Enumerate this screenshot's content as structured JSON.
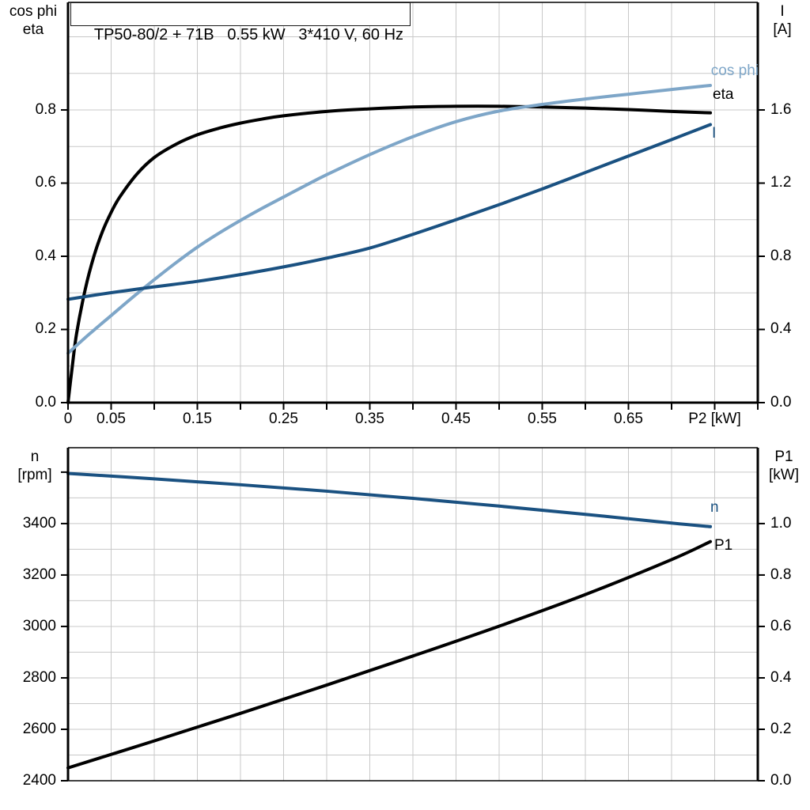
{
  "chart_data": [
    {
      "type": "line",
      "title": "TP50-80/2 + 71B   0.55 kW   3*410 V, 60 Hz",
      "x_axis": {
        "label": "P2 [kW]",
        "min": 0,
        "max": 0.8,
        "tick_step": 0.05,
        "grid_step": 0.05,
        "tick_labels": [
          {
            "v": 0,
            "label": "0"
          },
          {
            "v": 0.05,
            "label": "0.05"
          },
          {
            "v": 0.15,
            "label": "0.15"
          },
          {
            "v": 0.25,
            "label": "0.25"
          },
          {
            "v": 0.35,
            "label": "0.35"
          },
          {
            "v": 0.45,
            "label": "0.45"
          },
          {
            "v": 0.55,
            "label": "0.55"
          },
          {
            "v": 0.65,
            "label": "0.65"
          },
          {
            "v": 0.75,
            "label": "P2 [kW]"
          }
        ]
      },
      "left_axis": {
        "title_lines": [
          "cos phi",
          "eta"
        ],
        "min": 0,
        "max": 1.094,
        "grid": {
          "start": 0.1,
          "end": 1.0,
          "step": 0.1
        },
        "ticks": [
          {
            "v": 0.0,
            "label": "0.0"
          },
          {
            "v": 0.2,
            "label": "0.2"
          },
          {
            "v": 0.4,
            "label": "0.4"
          },
          {
            "v": 0.6,
            "label": "0.6"
          },
          {
            "v": 0.8,
            "label": "0.8"
          }
        ]
      },
      "right_axis": {
        "title_lines": [
          "I",
          "[A]"
        ],
        "min": 0,
        "max": 2.188,
        "ticks": [
          {
            "v": 0.0,
            "label": "0.0"
          },
          {
            "v": 0.4,
            "label": "0.4"
          },
          {
            "v": 0.8,
            "label": "0.8"
          },
          {
            "v": 1.2,
            "label": "1.2"
          },
          {
            "v": 1.6,
            "label": "1.6"
          }
        ]
      },
      "series": [
        {
          "name": "eta",
          "label": "eta",
          "axis": "left",
          "color": "#000000",
          "points": [
            [
              0,
              0
            ],
            [
              0.005,
              0.1
            ],
            [
              0.01,
              0.19
            ],
            [
              0.02,
              0.31
            ],
            [
              0.03,
              0.4
            ],
            [
              0.04,
              0.468
            ],
            [
              0.05,
              0.52
            ],
            [
              0.06,
              0.562
            ],
            [
              0.08,
              0.625
            ],
            [
              0.1,
              0.67
            ],
            [
              0.125,
              0.706
            ],
            [
              0.15,
              0.732
            ],
            [
              0.175,
              0.75
            ],
            [
              0.2,
              0.764
            ],
            [
              0.225,
              0.775
            ],
            [
              0.25,
              0.784
            ],
            [
              0.3,
              0.796
            ],
            [
              0.35,
              0.803
            ],
            [
              0.4,
              0.808
            ],
            [
              0.45,
              0.81
            ],
            [
              0.5,
              0.81
            ],
            [
              0.55,
              0.808
            ],
            [
              0.6,
              0.805
            ],
            [
              0.65,
              0.801
            ],
            [
              0.7,
              0.796
            ],
            [
              0.745,
              0.792
            ]
          ]
        },
        {
          "name": "cos-phi",
          "label": "cos phi",
          "axis": "left",
          "color": "#7ea6c8",
          "points": [
            [
              0,
              0.135
            ],
            [
              0.025,
              0.188
            ],
            [
              0.05,
              0.238
            ],
            [
              0.075,
              0.288
            ],
            [
              0.1,
              0.336
            ],
            [
              0.125,
              0.382
            ],
            [
              0.15,
              0.425
            ],
            [
              0.175,
              0.463
            ],
            [
              0.2,
              0.498
            ],
            [
              0.225,
              0.531
            ],
            [
              0.25,
              0.562
            ],
            [
              0.275,
              0.593
            ],
            [
              0.3,
              0.623
            ],
            [
              0.35,
              0.678
            ],
            [
              0.4,
              0.727
            ],
            [
              0.45,
              0.768
            ],
            [
              0.5,
              0.797
            ],
            [
              0.55,
              0.815
            ],
            [
              0.6,
              0.83
            ],
            [
              0.65,
              0.843
            ],
            [
              0.7,
              0.856
            ],
            [
              0.745,
              0.867
            ]
          ]
        },
        {
          "name": "current",
          "label": "I",
          "axis": "right",
          "color": "#1a5181",
          "points": [
            [
              0,
              0.565
            ],
            [
              0.05,
              0.601
            ],
            [
              0.1,
              0.633
            ],
            [
              0.15,
              0.663
            ],
            [
              0.2,
              0.7
            ],
            [
              0.25,
              0.742
            ],
            [
              0.3,
              0.79
            ],
            [
              0.35,
              0.845
            ],
            [
              0.4,
              0.92
            ],
            [
              0.45,
              1.0
            ],
            [
              0.5,
              1.082
            ],
            [
              0.55,
              1.168
            ],
            [
              0.6,
              1.258
            ],
            [
              0.65,
              1.348
            ],
            [
              0.7,
              1.438
            ],
            [
              0.745,
              1.52
            ]
          ]
        }
      ]
    },
    {
      "type": "line",
      "x_axis": {
        "min": 0,
        "max": 0.8,
        "grid_step": 0.05
      },
      "left_axis": {
        "title_lines": [
          "n",
          "[rpm]"
        ],
        "min": 2400,
        "max": 3695,
        "grid": {
          "start": 2500,
          "end": 3600,
          "step": 100
        },
        "ticks": [
          {
            "v": 2400,
            "label": "2400"
          },
          {
            "v": 2600,
            "label": "2600"
          },
          {
            "v": 2800,
            "label": "2800"
          },
          {
            "v": 3000,
            "label": "3000"
          },
          {
            "v": 3200,
            "label": "3200"
          },
          {
            "v": 3400,
            "label": "3400"
          },
          {
            "v": 3600,
            "label": ""
          }
        ]
      },
      "right_axis": {
        "title_lines": [
          "P1",
          "[kW]"
        ],
        "min": 0,
        "max": 1.295,
        "ticks": [
          {
            "v": 0.0,
            "label": "0.0"
          },
          {
            "v": 0.2,
            "label": "0.2"
          },
          {
            "v": 0.4,
            "label": "0.4"
          },
          {
            "v": 0.6,
            "label": "0.6"
          },
          {
            "v": 0.8,
            "label": "0.8"
          },
          {
            "v": 1.0,
            "label": "1.0"
          }
        ]
      },
      "series": [
        {
          "name": "speed",
          "label": "n",
          "axis": "left",
          "color": "#1a5181",
          "points": [
            [
              0,
              3595
            ],
            [
              0.1,
              3574
            ],
            [
              0.2,
              3551
            ],
            [
              0.3,
              3526
            ],
            [
              0.4,
              3498
            ],
            [
              0.5,
              3468
            ],
            [
              0.6,
              3436
            ],
            [
              0.7,
              3402
            ],
            [
              0.745,
              3388
            ]
          ]
        },
        {
          "name": "p1",
          "label": "P1",
          "axis": "right",
          "color": "#000000",
          "points": [
            [
              0,
              0.05
            ],
            [
              0.1,
              0.155
            ],
            [
              0.2,
              0.262
            ],
            [
              0.3,
              0.372
            ],
            [
              0.4,
              0.485
            ],
            [
              0.5,
              0.601
            ],
            [
              0.6,
              0.724
            ],
            [
              0.7,
              0.86
            ],
            [
              0.745,
              0.93
            ]
          ]
        }
      ]
    }
  ],
  "colors": {
    "grid": "#c8c8c8",
    "frame": "#000000"
  }
}
